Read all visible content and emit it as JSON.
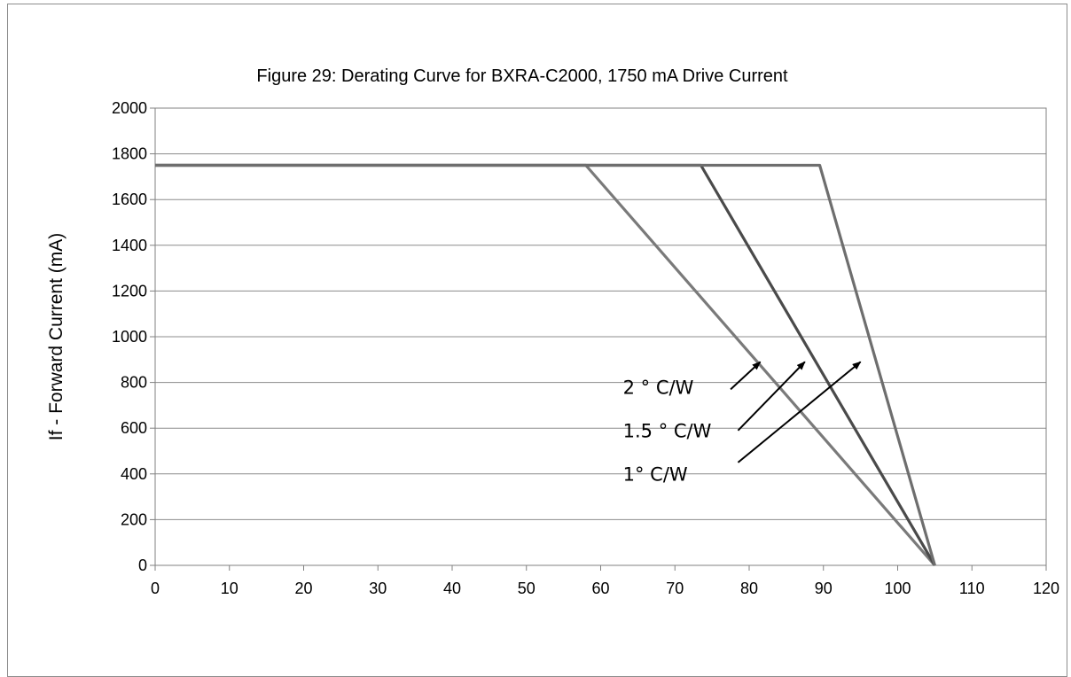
{
  "chart_data": {
    "type": "line",
    "title": "Figure 29:  Derating Curve for BXRA-C2000, 1750 mA Drive Current",
    "xlabel": "",
    "ylabel": "If - Forward Current (mA)",
    "xlim": [
      0,
      120
    ],
    "ylim": [
      0,
      2000
    ],
    "x_ticks": [
      0,
      10,
      20,
      30,
      40,
      50,
      60,
      70,
      80,
      90,
      100,
      110,
      120
    ],
    "y_ticks": [
      0,
      200,
      400,
      600,
      800,
      1000,
      1200,
      1400,
      1600,
      1800,
      2000
    ],
    "grid": {
      "horizontal": true,
      "vertical": false
    },
    "legend": "none",
    "series": [
      {
        "points": [
          [
            0,
            1750
          ],
          [
            58,
            1750
          ],
          [
            105,
            0
          ]
        ],
        "color": "#7a7a7a"
      },
      {
        "points": [
          [
            0,
            1750
          ],
          [
            73.5,
            1750
          ],
          [
            105,
            0
          ]
        ],
        "color": "#4a4a4a"
      },
      {
        "points": [
          [
            0,
            1750
          ],
          [
            89.5,
            1750
          ],
          [
            105,
            0
          ]
        ],
        "color": "#6e6e6e"
      }
    ],
    "annotations": [
      {
        "text": "2 ° C/W",
        "x": 63,
        "y": 750,
        "arrow_from": [
          77.5,
          770
        ],
        "arrow_to": [
          81.5,
          890
        ]
      },
      {
        "text": "1.5 ° C/W",
        "x": 63,
        "y": 560,
        "arrow_from": [
          78.5,
          590
        ],
        "arrow_to": [
          87.5,
          890
        ]
      },
      {
        "text": "1° C/W",
        "x": 63,
        "y": 370,
        "arrow_from": [
          78.5,
          450
        ],
        "arrow_to": [
          95,
          890
        ]
      }
    ]
  }
}
